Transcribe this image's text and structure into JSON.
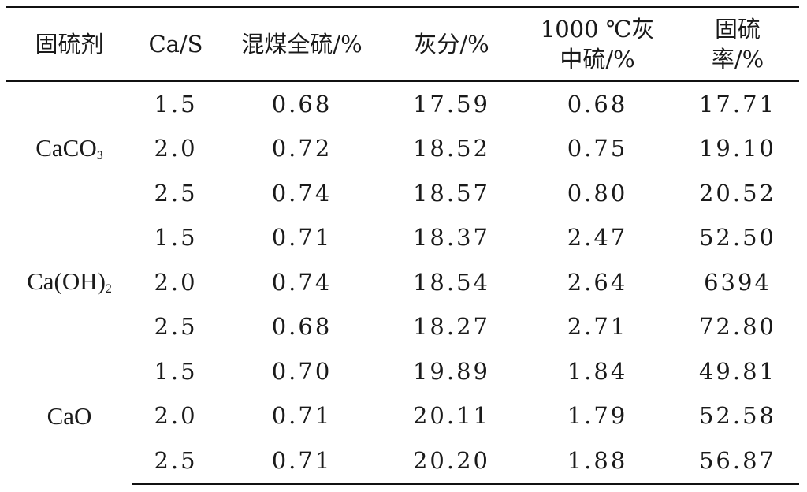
{
  "table": {
    "headers": {
      "agent": "固硫剂",
      "ratio": "Ca/S",
      "total_sulfur": "混煤全硫/%",
      "ash": "灰分/%",
      "ash_sulfur_line1": "1000 ℃灰",
      "ash_sulfur_line2": "中硫/%",
      "rate_line1": "固硫",
      "rate_line2": "率/%"
    },
    "groups": [
      {
        "agent_main": "CaCO",
        "agent_sub": "3",
        "agent_tail": "",
        "rows": [
          {
            "ratio": "1.5",
            "total_sulfur": "0.68",
            "ash": "17.59",
            "ash_sulfur": "0.68",
            "rate": "17.71"
          },
          {
            "ratio": "2.0",
            "total_sulfur": "0.72",
            "ash": "18.52",
            "ash_sulfur": "0.75",
            "rate": "19.10"
          },
          {
            "ratio": "2.5",
            "total_sulfur": "0.74",
            "ash": "18.57",
            "ash_sulfur": "0.80",
            "rate": "20.52"
          }
        ]
      },
      {
        "agent_main": "Ca(OH)",
        "agent_sub": "2",
        "agent_tail": "",
        "rows": [
          {
            "ratio": "1.5",
            "total_sulfur": "0.71",
            "ash": "18.37",
            "ash_sulfur": "2.47",
            "rate": "52.50"
          },
          {
            "ratio": "2.0",
            "total_sulfur": "0.74",
            "ash": "18.54",
            "ash_sulfur": "2.64",
            "rate": "6394"
          },
          {
            "ratio": "2.5",
            "total_sulfur": "0.68",
            "ash": "18.27",
            "ash_sulfur": "2.71",
            "rate": "72.80"
          }
        ]
      },
      {
        "agent_main": "CaO",
        "agent_sub": "",
        "agent_tail": "",
        "rows": [
          {
            "ratio": "1.5",
            "total_sulfur": "0.70",
            "ash": "19.89",
            "ash_sulfur": "1.84",
            "rate": "49.81"
          },
          {
            "ratio": "2.0",
            "total_sulfur": "0.71",
            "ash": "20.11",
            "ash_sulfur": "1.79",
            "rate": "52.58"
          },
          {
            "ratio": "2.5",
            "total_sulfur": "0.71",
            "ash": "20.20",
            "ash_sulfur": "1.88",
            "rate": "56.87"
          }
        ]
      }
    ]
  }
}
